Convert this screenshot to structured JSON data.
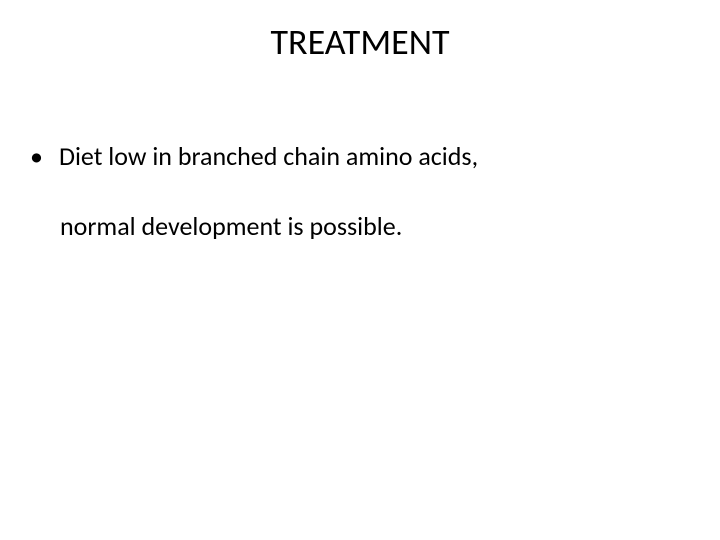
{
  "slide": {
    "title": "TREATMENT",
    "title_fontsize": 36,
    "title_color": "#000000",
    "background_color": "#ffffff",
    "body_fontsize": 26,
    "body_color": "#000000",
    "bullet_char": "•",
    "bullets": [
      {
        "line1": "Diet low in branched chain amino acids,",
        "line2": "normal development is possible."
      }
    ]
  }
}
